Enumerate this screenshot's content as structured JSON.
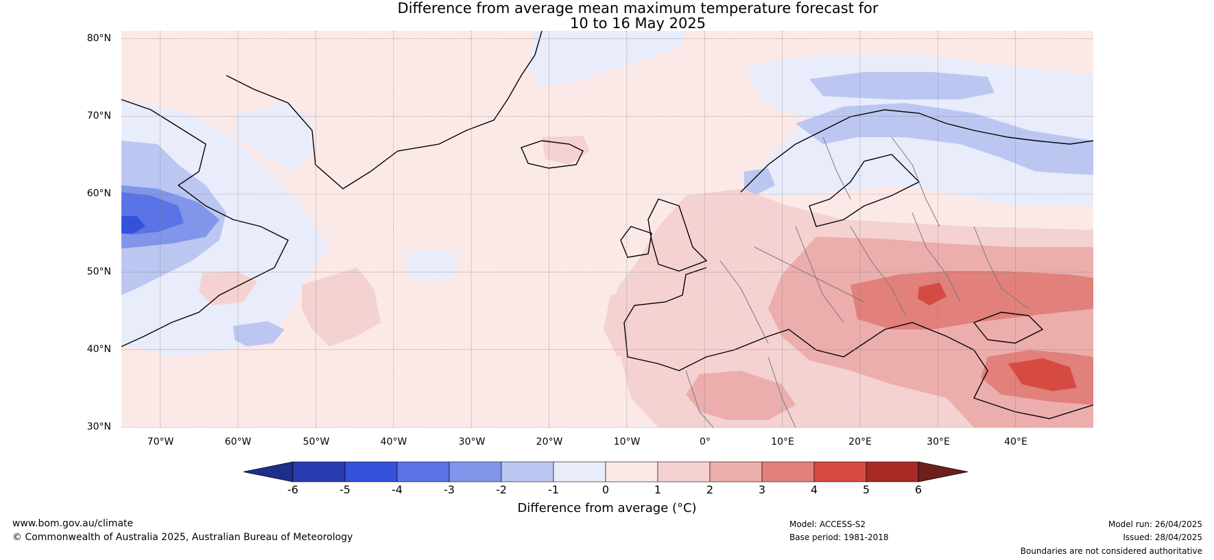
{
  "title": {
    "line1": "Difference from average mean maximum temperature forecast for",
    "line2": "10 to 16 May 2025"
  },
  "map": {
    "projection": "equirectangular",
    "lon_range": [
      -75,
      50
    ],
    "lat_range": [
      30,
      81
    ],
    "lat_labels": [
      "80°N",
      "70°N",
      "60°N",
      "50°N",
      "40°N",
      "30°N"
    ],
    "lon_labels": [
      "70°W",
      "60°W",
      "50°W",
      "40°W",
      "30°W",
      "20°W",
      "10°W",
      "0°",
      "10°E",
      "20°E",
      "30°E",
      "40°E"
    ],
    "gridlines": true
  },
  "colorbar": {
    "ticks": [
      "-6",
      "-5",
      "-4",
      "-3",
      "-2",
      "-1",
      "0",
      "1",
      "2",
      "3",
      "4",
      "5",
      "6"
    ],
    "label": "Difference from average (°C)",
    "extend": "both",
    "colors": [
      "#1d2f8c",
      "#2a3db0",
      "#3352d9",
      "#5a73e6",
      "#8196ea",
      "#bcc7f1",
      "#e8ecfb",
      "#fbe9e8",
      "#f4d2d1",
      "#ecaeac",
      "#e2807b",
      "#d54b42",
      "#a82a25",
      "#6e1e1b"
    ]
  },
  "footer": {
    "url": "www.bom.gov.au/climate",
    "copyright": "© Commonwealth of Australia 2025, Australian Bureau of Meteorology",
    "model": "Model: ACCESS-S2",
    "base_period": "Base period: 1981-2018",
    "model_run": "Model run: 26/04/2025",
    "issued": "Issued: 28/04/2025",
    "disclaimer": "Boundaries are not considered authoritative"
  }
}
